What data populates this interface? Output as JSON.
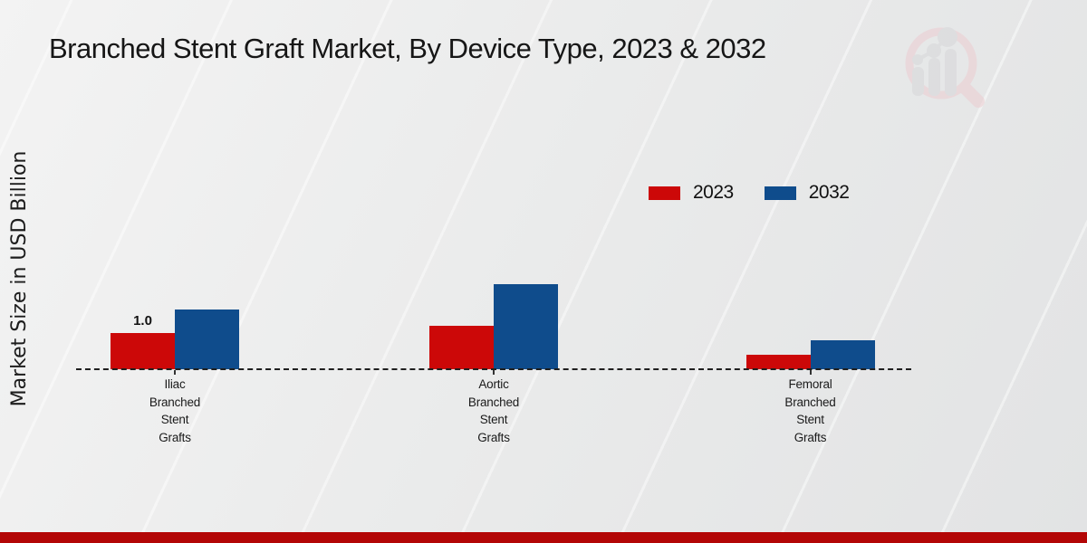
{
  "header": {
    "title": "Branched Stent Graft Market, By Device Type, 2023 & 2032"
  },
  "y_axis": {
    "label": "Market Size in USD Billion"
  },
  "watermark": {
    "icon": "magnifier-bar-chart-logo",
    "ring_color": "#ecccd1",
    "bar_color": "#d6d6d9"
  },
  "legend": {
    "items": [
      {
        "label": "2023",
        "color": "#cc0808"
      },
      {
        "label": "2032",
        "color": "#0f4c8c"
      }
    ]
  },
  "footer": {
    "accent_color": "#b30606"
  },
  "chart_data": {
    "type": "bar",
    "title": "Branched Stent Graft Market, By Device Type, 2023 & 2032",
    "ylabel": "Market Size in USD Billion",
    "xlabel": "",
    "unit": "USD Billion",
    "categories": [
      "Iliac Branched Stent Grafts",
      "Aortic Branched Stent Grafts",
      "Femoral Branched Stent Grafts"
    ],
    "series": [
      {
        "name": "2023",
        "color": "#cc0808",
        "values": [
          1.0,
          1.2,
          0.4
        ]
      },
      {
        "name": "2032",
        "color": "#0f4c8c",
        "values": [
          1.65,
          2.35,
          0.8
        ]
      }
    ],
    "annotations": [
      {
        "series": "2023",
        "category_index": 0,
        "text": "1.0"
      }
    ],
    "ylim": [
      0,
      3
    ],
    "grid": false,
    "y_axis_ticks_visible": false,
    "baseline_style": "dashed",
    "legend_position": "upper-right"
  }
}
